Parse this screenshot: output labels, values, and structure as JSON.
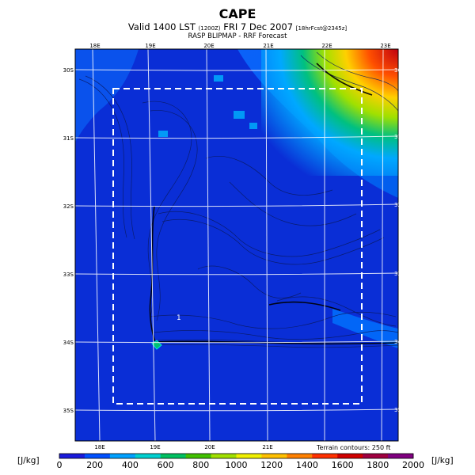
{
  "header": {
    "title": "CAPE",
    "line1_main": "Valid 1400 LST",
    "line1_time": "(1200Z)",
    "line1_date": "FRI 7 Dec 2007",
    "line1_fcst": "[18hrFcst@2345z]",
    "line2": "RASP BLIPMAP - RRF Forecast"
  },
  "map": {
    "lon_labels_top": [
      "18E",
      "19E",
      "20E",
      "21E",
      "22E",
      "23E"
    ],
    "lon_labels_bottom": [
      "18E",
      "19E",
      "20E",
      "21E"
    ],
    "lat_labels": [
      "30S",
      "31S",
      "32S",
      "33S",
      "34S",
      "35S"
    ],
    "marker_label": "1",
    "terrain_note": "Terrain contours: 250 ft",
    "background_color": "#0a2ed6",
    "dashed_box": true
  },
  "colorbar": {
    "unit_left": "[J/kg]",
    "unit_right": "[J/kg]",
    "labels": [
      "0",
      "200",
      "400",
      "600",
      "800",
      "1000",
      "1200",
      "1400",
      "1600",
      "1800",
      "2000"
    ],
    "colors": [
      "#1a1adc",
      "#0050ff",
      "#00a0ff",
      "#00d0d0",
      "#00c060",
      "#40c000",
      "#a0e000",
      "#f0f000",
      "#ffc000",
      "#ff8000",
      "#ff3000",
      "#d00000",
      "#a00040",
      "#800080"
    ]
  }
}
